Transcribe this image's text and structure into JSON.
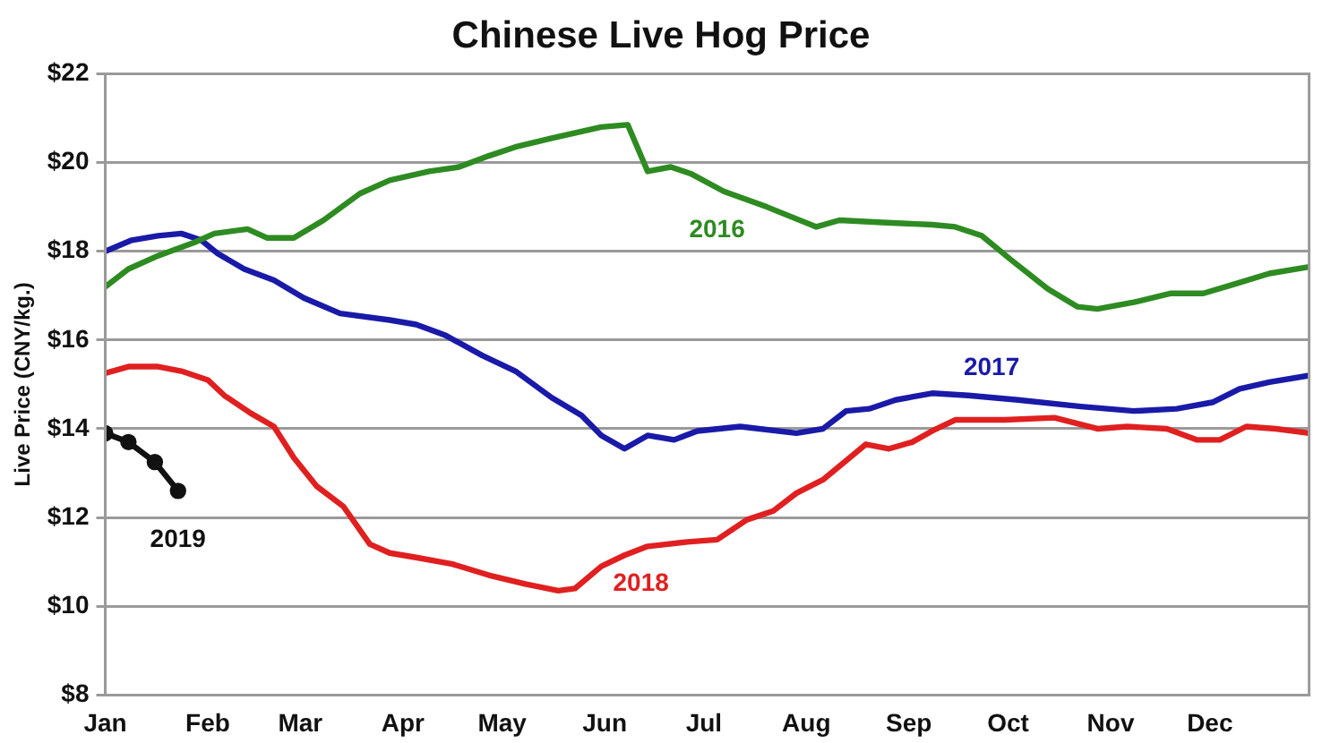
{
  "chart_data": {
    "type": "line",
    "title": "Chinese Live Hog Price",
    "ylabel": "Live Price (CNY/kg.)",
    "xlim": [
      "--01-01",
      "--12-31"
    ],
    "xticks": [
      {
        "value": "--01-01",
        "label": "Jan"
      },
      {
        "value": "--02-01",
        "label": "Feb"
      },
      {
        "value": "--03-01",
        "label": "Mar"
      },
      {
        "value": "--04-01",
        "label": "Apr"
      },
      {
        "value": "--05-01",
        "label": "May"
      },
      {
        "value": "--06-01",
        "label": "Jun"
      },
      {
        "value": "--07-01",
        "label": "Jul"
      },
      {
        "value": "--08-01",
        "label": "Aug"
      },
      {
        "value": "--09-01",
        "label": "Sep"
      },
      {
        "value": "--10-01",
        "label": "Oct"
      },
      {
        "value": "--11-01",
        "label": "Nov"
      },
      {
        "value": "--12-01",
        "label": "Dec"
      }
    ],
    "ylim": [
      8,
      22
    ],
    "yticks": [
      {
        "value": 8,
        "label": "$8"
      },
      {
        "value": 10,
        "label": "$10"
      },
      {
        "value": 12,
        "label": "$12"
      },
      {
        "value": 14,
        "label": "$14"
      },
      {
        "value": 16,
        "label": "$16"
      },
      {
        "value": 18,
        "label": "$18"
      },
      {
        "value": 20,
        "label": "$20"
      },
      {
        "value": 22,
        "label": "$22"
      }
    ],
    "grid": "y",
    "legend": false,
    "marker": "none",
    "line_style": "solid",
    "series": [
      {
        "name": "2016",
        "color": "#2e8b22",
        "x": [
          "--01-01",
          "--01-08",
          "--01-17",
          "--01-28",
          "--02-03",
          "--02-13",
          "--02-19",
          "--02-27",
          "--03-08",
          "--03-19",
          "--03-28",
          "--04-09",
          "--04-18",
          "--04-27",
          "--05-05",
          "--05-16",
          "--05-31",
          "--06-08",
          "--06-14",
          "--06-21",
          "--06-27",
          "--07-07",
          "--07-20",
          "--08-04",
          "--08-11",
          "--08-24",
          "--09-08",
          "--09-15",
          "--09-23",
          "--10-02",
          "--10-13",
          "--10-22",
          "--10-28",
          "--11-08",
          "--11-19",
          "--11-29",
          "--12-08",
          "--12-19",
          "--12-31"
        ],
        "values": [
          17.2,
          17.6,
          17.9,
          18.2,
          18.4,
          18.5,
          18.3,
          18.3,
          18.7,
          19.3,
          19.6,
          19.8,
          19.9,
          20.15,
          20.35,
          20.55,
          20.8,
          20.85,
          19.8,
          19.9,
          19.75,
          19.35,
          19.0,
          18.55,
          18.7,
          18.65,
          18.6,
          18.55,
          18.35,
          17.8,
          17.15,
          16.75,
          16.7,
          16.85,
          17.05,
          17.05,
          17.25,
          17.5,
          17.65
        ]
      },
      {
        "name": "2017",
        "color": "#1a1aa8",
        "x": [
          "--01-01",
          "--01-09",
          "--01-17",
          "--01-24",
          "--01-30",
          "--02-04",
          "--02-12",
          "--02-21",
          "--03-02",
          "--03-13",
          "--03-28",
          "--04-05",
          "--04-14",
          "--04-25",
          "--05-05",
          "--05-16",
          "--05-25",
          "--05-31",
          "--06-07",
          "--06-14",
          "--06-22",
          "--06-29",
          "--07-12",
          "--07-29",
          "--08-06",
          "--08-13",
          "--08-20",
          "--08-28",
          "--09-08",
          "--09-19",
          "--10-04",
          "--10-23",
          "--11-08",
          "--11-21",
          "--12-02",
          "--12-10",
          "--12-19",
          "--12-31"
        ],
        "values": [
          18.0,
          18.25,
          18.35,
          18.4,
          18.25,
          17.95,
          17.6,
          17.35,
          16.95,
          16.6,
          16.45,
          16.35,
          16.1,
          15.65,
          15.3,
          14.7,
          14.3,
          13.85,
          13.55,
          13.85,
          13.75,
          13.95,
          14.05,
          13.9,
          14.0,
          14.4,
          14.45,
          14.65,
          14.8,
          14.75,
          14.65,
          14.5,
          14.4,
          14.45,
          14.6,
          14.9,
          15.05,
          15.2
        ]
      },
      {
        "name": "2018",
        "color": "#e02020",
        "x": [
          "--01-01",
          "--01-08",
          "--01-17",
          "--01-24",
          "--02-01",
          "--02-06",
          "--02-14",
          "--02-21",
          "--02-27",
          "--03-06",
          "--03-14",
          "--03-22",
          "--03-28",
          "--04-05",
          "--04-16",
          "--04-27",
          "--05-08",
          "--05-18",
          "--05-23",
          "--05-31",
          "--06-07",
          "--06-14",
          "--06-26",
          "--07-05",
          "--07-14",
          "--07-22",
          "--07-29",
          "--08-06",
          "--08-19",
          "--08-26",
          "--09-02",
          "--09-08",
          "--09-15",
          "--09-30",
          "--10-15",
          "--10-28",
          "--11-06",
          "--11-18",
          "--11-27",
          "--12-04",
          "--12-12",
          "--12-21",
          "--12-31"
        ],
        "values": [
          15.25,
          15.4,
          15.4,
          15.3,
          15.1,
          14.75,
          14.35,
          14.05,
          13.35,
          12.7,
          12.25,
          11.4,
          11.2,
          11.1,
          10.95,
          10.7,
          10.5,
          10.35,
          10.4,
          10.9,
          11.15,
          11.35,
          11.45,
          11.5,
          11.95,
          12.15,
          12.55,
          12.85,
          13.65,
          13.55,
          13.7,
          13.95,
          14.2,
          14.2,
          14.25,
          14.0,
          14.05,
          14.0,
          13.75,
          13.75,
          14.05,
          14.0,
          13.9
        ]
      },
      {
        "name": "2019",
        "color": "#111111",
        "marker": "circle",
        "x": [
          "--01-01",
          "--01-08",
          "--01-16",
          "--01-23"
        ],
        "values": [
          13.9,
          13.7,
          13.25,
          12.6
        ]
      }
    ]
  }
}
